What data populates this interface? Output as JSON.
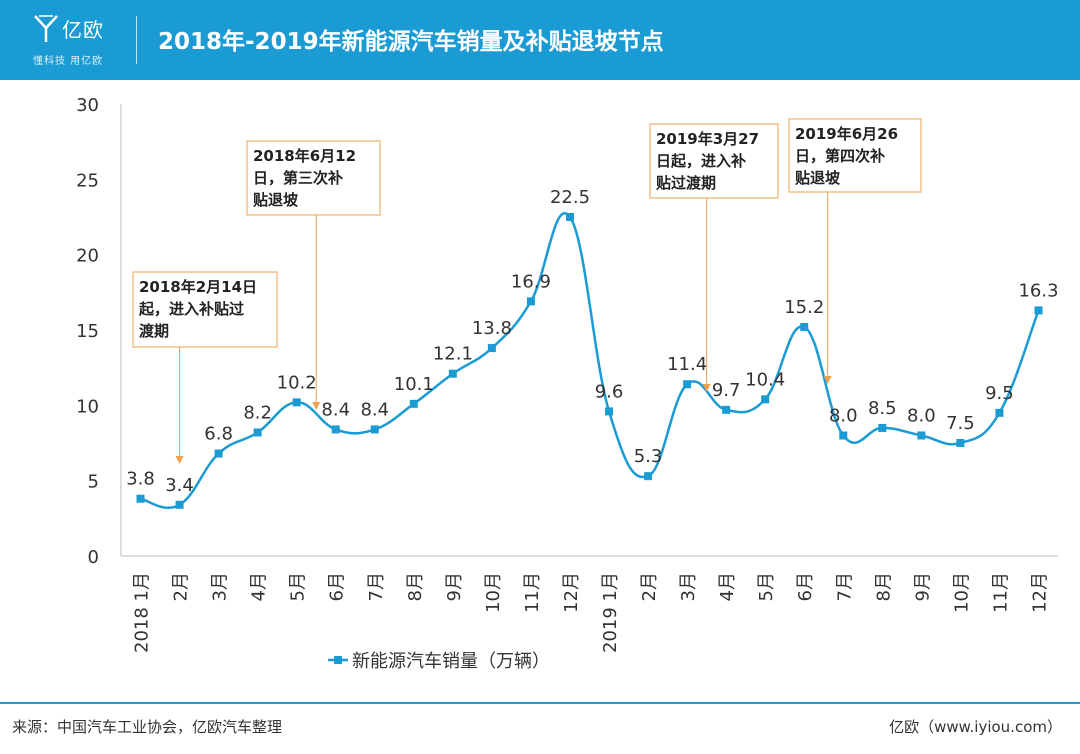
{
  "header": {
    "logo_text": "亿欧",
    "logo_slogan": "懂科技 用亿欧",
    "title": "2018年-2019年新能源汽车销量及补贴退坡节点"
  },
  "footer": {
    "source": "来源：中国汽车工业协会，亿欧汽车整理",
    "site": "亿欧（www.iyiou.com）"
  },
  "colors": {
    "header_bg": "#1a9bd3",
    "series_line": "#1a9bd3",
    "annotation_border": "#f0a050",
    "annotation_arrow": "#f0a050"
  },
  "chart_data": {
    "type": "line",
    "title": "",
    "categories": [
      "2018 1月",
      "2月",
      "3月",
      "4月",
      "5月",
      "6月",
      "7月",
      "8月",
      "9月",
      "10月",
      "11月",
      "12月",
      "2019 1月",
      "2月",
      "3月",
      "4月",
      "5月",
      "6月",
      "7月",
      "8月",
      "9月",
      "10月",
      "11月",
      "12月"
    ],
    "series": [
      {
        "name": "新能源汽车销量（万辆）",
        "values": [
          3.8,
          3.4,
          6.8,
          8.2,
          10.2,
          8.4,
          8.4,
          10.1,
          12.1,
          13.8,
          16.9,
          22.5,
          9.6,
          5.3,
          11.4,
          9.7,
          10.4,
          15.2,
          8.0,
          8.5,
          8.0,
          7.5,
          9.5,
          16.3
        ]
      }
    ],
    "data_labels": [
      "3.8",
      "3.4",
      "6.8",
      "8.2",
      "10.2",
      "8.4",
      "8.4",
      "10.1",
      "12.1",
      "13.8",
      "16.9",
      "22.5",
      "9.6",
      "5.3",
      "11.4",
      "9.7",
      "10.4",
      "15.2",
      "8.0",
      "8.5",
      "8.0",
      "7.5",
      "9.5",
      "16.3"
    ],
    "ylim": [
      0,
      30
    ],
    "yticks": [
      "0",
      "5",
      "10",
      "15",
      "20",
      "25",
      "30"
    ],
    "xlabel": "",
    "ylabel": "",
    "grid": false,
    "legend_position": "bottom",
    "annotations": [
      {
        "lines": [
          "2018年2月14日",
          "起，进入补贴过",
          "渡期"
        ],
        "target_index": 1
      },
      {
        "lines": [
          "2018年6月12",
          "日，第三次补",
          "贴退坡"
        ],
        "target_index": 4.5
      },
      {
        "lines": [
          "2019年3月27",
          "日起，进入补",
          "贴过渡期"
        ],
        "target_index": 14.5
      },
      {
        "lines": [
          "2019年6月26",
          "日，第四次补",
          "贴退坡"
        ],
        "target_index": 17.6
      }
    ]
  }
}
